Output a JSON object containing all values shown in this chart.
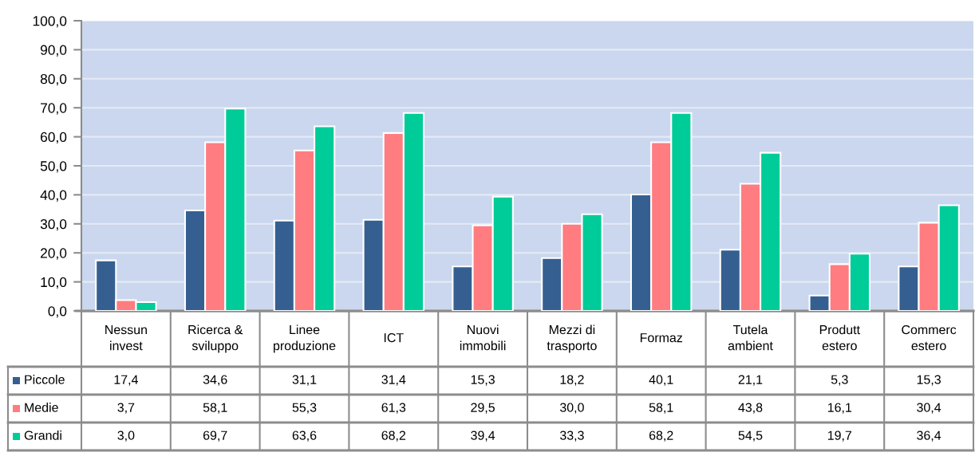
{
  "chart_data": {
    "type": "bar",
    "categories": [
      "Nessun\ninvest",
      "Ricerca &\nsviluppo",
      "Linee\nproduzione",
      "ICT",
      "Nuovi\nimmobili",
      "Mezzi di\ntrasporto",
      "Formaz",
      "Tutela\nambient",
      "Produtt\nestero",
      "Commerc\nestero"
    ],
    "series": [
      {
        "name": "Piccole",
        "color": "#365f91",
        "values": [
          17.4,
          34.6,
          31.1,
          31.4,
          15.3,
          18.2,
          40.1,
          21.1,
          5.3,
          15.3
        ],
        "value_labels": [
          "17,4",
          "34,6",
          "31,1",
          "31,4",
          "15,3",
          "18,2",
          "40,1",
          "21,1",
          "5,3",
          "15,3"
        ]
      },
      {
        "name": "Medie",
        "color": "#ff7c80",
        "values": [
          3.7,
          58.1,
          55.3,
          61.3,
          29.5,
          30.0,
          58.1,
          43.8,
          16.1,
          30.4
        ],
        "value_labels": [
          "3,7",
          "58,1",
          "55,3",
          "61,3",
          "29,5",
          "30,0",
          "58,1",
          "43,8",
          "16,1",
          "30,4"
        ]
      },
      {
        "name": "Grandi",
        "color": "#00cc99",
        "values": [
          3.0,
          69.7,
          63.6,
          68.2,
          39.4,
          33.3,
          68.2,
          54.5,
          19.7,
          36.4
        ],
        "value_labels": [
          "3,0",
          "69,7",
          "63,6",
          "68,2",
          "39,4",
          "33,3",
          "68,2",
          "54,5",
          "19,7",
          "36,4"
        ]
      }
    ],
    "ylim": [
      0,
      100
    ],
    "yticks": [
      {
        "value": 0,
        "label": "0,0"
      },
      {
        "value": 10,
        "label": "10,0"
      },
      {
        "value": 20,
        "label": "20,0"
      },
      {
        "value": 30,
        "label": "30,0"
      },
      {
        "value": 40,
        "label": "40,0"
      },
      {
        "value": 50,
        "label": "50,0"
      },
      {
        "value": 60,
        "label": "60,0"
      },
      {
        "value": 70,
        "label": "70,0"
      },
      {
        "value": 80,
        "label": "80,0"
      },
      {
        "value": 90,
        "label": "90,0"
      },
      {
        "value": 100,
        "label": "100,0"
      }
    ],
    "grid": "y",
    "legend": "bottom"
  }
}
